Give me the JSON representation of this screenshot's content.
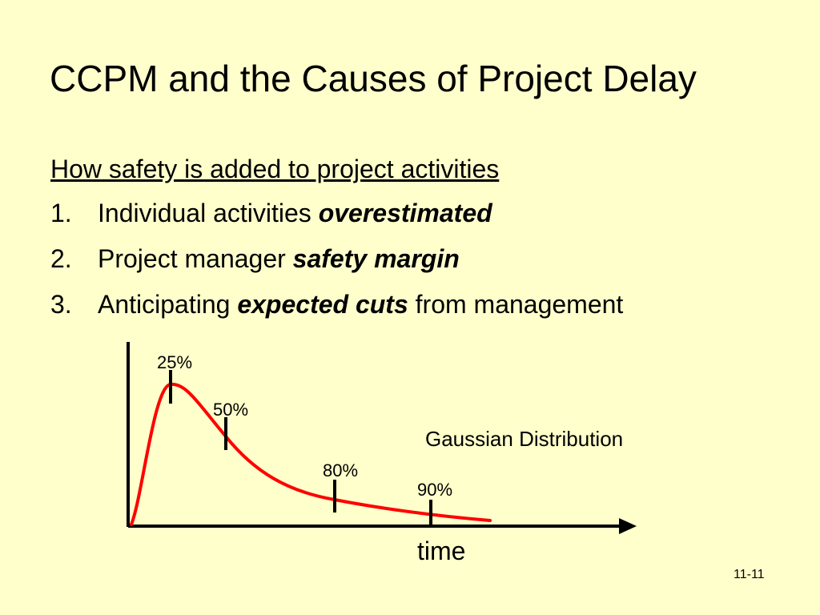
{
  "slide": {
    "title": "CCPM and the Causes of Project Delay",
    "subheading": "How safety is added to project activities",
    "items": [
      {
        "number": "1.",
        "text": "Individual activities ",
        "emphasis": "overestimated",
        "suffix": ""
      },
      {
        "number": "2.",
        "text": "Project manager ",
        "emphasis": "safety margin",
        "suffix": ""
      },
      {
        "number": "3.",
        "text": "Anticipating ",
        "emphasis": "expected cuts",
        "suffix": " from management"
      }
    ],
    "page_number": "11-11"
  },
  "diagram": {
    "curve_label": "Gaussian Distribution",
    "x_axis_label": "time",
    "markers": [
      {
        "label": "25%"
      },
      {
        "label": "50%"
      },
      {
        "label": "80%"
      },
      {
        "label": "90%"
      }
    ],
    "colors": {
      "curve": "#ff0000",
      "axis": "#000000",
      "background": "#ffffcc"
    }
  }
}
